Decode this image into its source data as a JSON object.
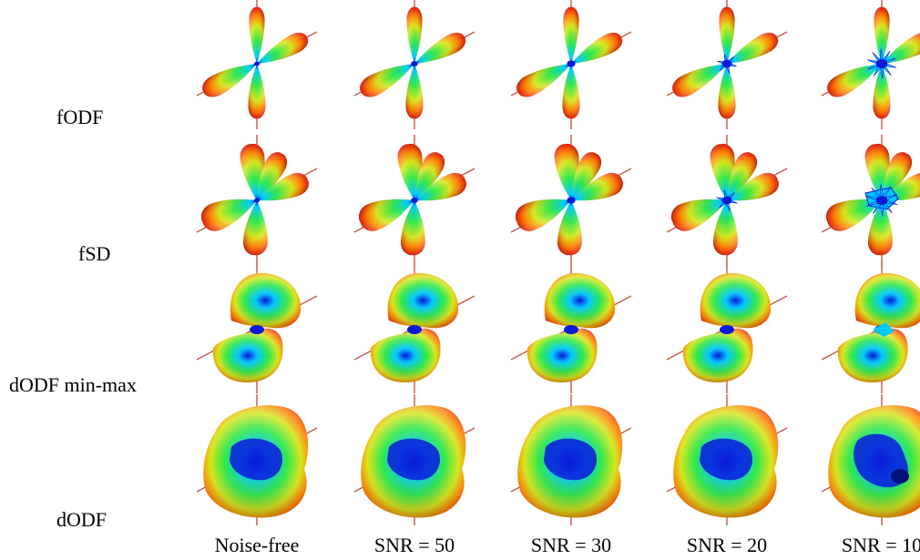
{
  "row_labels": [
    {
      "text": "fODF",
      "glyph": "fodf"
    },
    {
      "text": "fSD",
      "glyph": "fsd"
    },
    {
      "text": "dODF min-max",
      "glyph": "minmax"
    },
    {
      "text": "dODF",
      "glyph": "dodf"
    }
  ],
  "col_labels": [
    {
      "text": "Noise-free",
      "noise": 0
    },
    {
      "text": "SNR = 50",
      "noise": 1
    },
    {
      "text": "SNR = 30",
      "noise": 2
    },
    {
      "text": "SNR = 20",
      "noise": 3
    },
    {
      "text": "SNR = 10",
      "noise": 4
    }
  ],
  "colors": {
    "axis_line": "#c0392b",
    "surface_stops": [
      "#0a1ad8",
      "#00c8ff",
      "#2ee84a",
      "#d8e61a",
      "#ff7a00",
      "#d61a08"
    ]
  }
}
